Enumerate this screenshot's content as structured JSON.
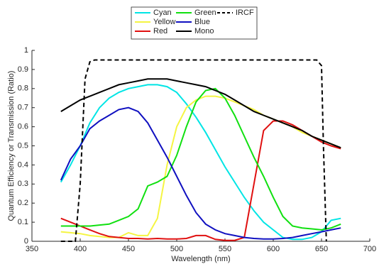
{
  "chart_data": {
    "type": "line",
    "x_label": "Wavelength (nm)",
    "y_label": "Quantum Efficiency or Transmission (Ratio)",
    "x": [
      380,
      390,
      400,
      410,
      420,
      430,
      440,
      450,
      460,
      470,
      480,
      490,
      500,
      510,
      520,
      530,
      540,
      550,
      560,
      570,
      580,
      590,
      600,
      610,
      620,
      630,
      640,
      650,
      660,
      670
    ],
    "xlim": [
      350,
      700
    ],
    "xticks": [
      350,
      400,
      450,
      500,
      550,
      600,
      650,
      700
    ],
    "ylim": [
      0,
      1
    ],
    "yticks": [
      0,
      0.1,
      0.2,
      0.3,
      0.4,
      0.5,
      0.6,
      0.7,
      0.8,
      0.9,
      1
    ],
    "grid": false,
    "series": [
      {
        "name": "Cyan",
        "color": "#00e5e5",
        "values": [
          0.31,
          0.4,
          0.5,
          0.62,
          0.7,
          0.75,
          0.78,
          0.8,
          0.81,
          0.82,
          0.82,
          0.81,
          0.78,
          0.72,
          0.65,
          0.57,
          0.48,
          0.39,
          0.31,
          0.23,
          0.16,
          0.1,
          0.06,
          0.02,
          0.01,
          0.01,
          0.02,
          0.05,
          0.11,
          0.12
        ]
      },
      {
        "name": "Yellow",
        "color": "#f5f542",
        "values": [
          0.05,
          0.045,
          0.04,
          0.03,
          0.025,
          0.02,
          0.02,
          0.045,
          0.03,
          0.03,
          0.12,
          0.4,
          0.6,
          0.7,
          0.74,
          0.76,
          0.76,
          0.75,
          0.73,
          0.71,
          0.69,
          0.66,
          0.64,
          0.62,
          0.6,
          0.57,
          0.55,
          0.53,
          0.51,
          0.49
        ]
      },
      {
        "name": "Red",
        "color": "#e01010",
        "values": [
          0.12,
          0.1,
          0.08,
          0.06,
          0.04,
          0.025,
          0.02,
          0.015,
          0.015,
          0.012,
          0.015,
          0.012,
          0.012,
          0.015,
          0.03,
          0.03,
          0.01,
          0.005,
          0.005,
          0.02,
          0.3,
          0.58,
          0.63,
          0.63,
          0.61,
          0.58,
          0.55,
          0.52,
          0.5,
          0.485
        ]
      },
      {
        "name": "Green",
        "color": "#10e010",
        "values": [
          0.08,
          0.08,
          0.08,
          0.08,
          0.085,
          0.09,
          0.11,
          0.13,
          0.17,
          0.29,
          0.31,
          0.34,
          0.45,
          0.6,
          0.73,
          0.79,
          0.8,
          0.75,
          0.66,
          0.55,
          0.44,
          0.34,
          0.23,
          0.13,
          0.08,
          0.07,
          0.065,
          0.06,
          0.07,
          0.09
        ]
      },
      {
        "name": "Blue",
        "color": "#1010c0",
        "values": [
          0.32,
          0.43,
          0.5,
          0.59,
          0.63,
          0.66,
          0.69,
          0.7,
          0.68,
          0.62,
          0.53,
          0.44,
          0.34,
          0.24,
          0.15,
          0.09,
          0.06,
          0.04,
          0.03,
          0.02,
          0.015,
          0.012,
          0.012,
          0.015,
          0.02,
          0.03,
          0.04,
          0.05,
          0.06,
          0.07
        ]
      },
      {
        "name": "Mono",
        "color": "#000000",
        "values": [
          0.68,
          0.71,
          0.74,
          0.76,
          0.78,
          0.8,
          0.82,
          0.83,
          0.84,
          0.85,
          0.85,
          0.85,
          0.84,
          0.83,
          0.82,
          0.81,
          0.79,
          0.77,
          0.74,
          0.71,
          0.68,
          0.66,
          0.64,
          0.62,
          0.6,
          0.58,
          0.55,
          0.53,
          0.51,
          0.49
        ]
      },
      {
        "name": "IRCF",
        "color": "#000000",
        "dashed": true,
        "x": [
          380,
          395,
          400,
          405,
          410,
          415,
          645,
          650,
          652,
          655
        ],
        "values": [
          0,
          0,
          0.3,
          0.85,
          0.94,
          0.95,
          0.95,
          0.92,
          0.5,
          0
        ]
      }
    ]
  }
}
